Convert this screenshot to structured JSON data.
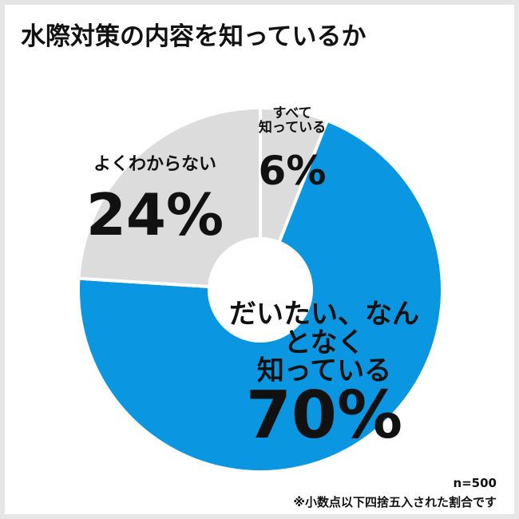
{
  "chart_data": {
    "type": "donut",
    "title": "水際対策の内容を知っているか",
    "categories": [
      "すべて\n知っている",
      "だいたい、なんとなく\n知っている",
      "よくわからない"
    ],
    "values": [
      6,
      70,
      24
    ],
    "value_labels": [
      "6%",
      "70%",
      "24%"
    ],
    "colors": [
      "#dcdcdc",
      "#0a96e0",
      "#dcdcdc"
    ],
    "annotations": [
      "n=500",
      "※小数点以下四捨五入された割合です"
    ]
  }
}
